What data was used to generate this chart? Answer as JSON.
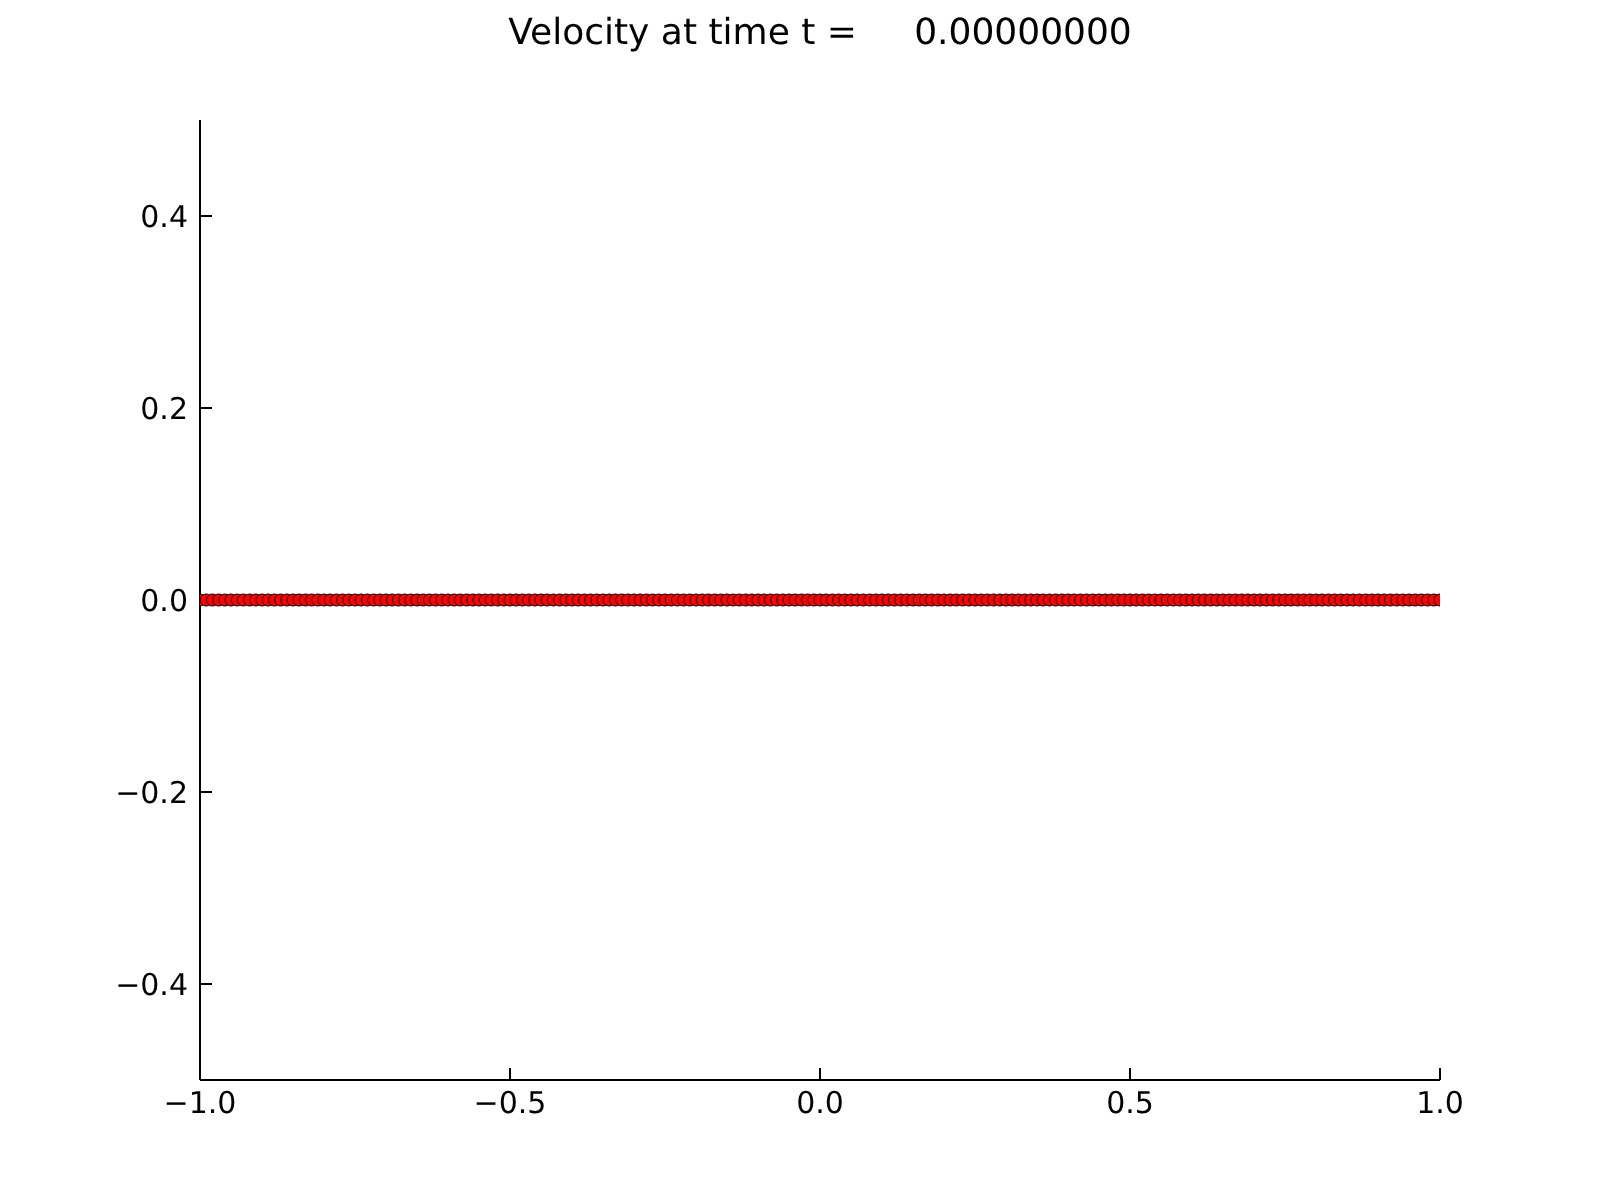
{
  "chart_data": {
    "type": "scatter",
    "title": "Velocity at time t =     0.00000000",
    "marker": "circle",
    "grid": false,
    "legend": false,
    "xlim": [
      -1,
      1
    ],
    "xticks": [
      {
        "value": -1,
        "label": "−1.0"
      },
      {
        "value": -0.5,
        "label": "−0.5"
      },
      {
        "value": 0,
        "label": "0.0"
      },
      {
        "value": 0.5,
        "label": "0.5"
      },
      {
        "value": 1,
        "label": "1.0"
      }
    ],
    "ylim": [
      -0.5,
      0.5
    ],
    "yticks": [
      {
        "value": -0.4,
        "label": "−0.4"
      },
      {
        "value": -0.2,
        "label": "−0.2"
      },
      {
        "value": 0,
        "label": "0.0"
      },
      {
        "value": 0.2,
        "label": "0.2"
      },
      {
        "value": 0.4,
        "label": "0.4"
      }
    ],
    "x": [
      -1,
      -0.99,
      -0.98,
      -0.97,
      -0.96,
      -0.95,
      -0.94,
      -0.93,
      -0.92,
      -0.91,
      -0.9,
      -0.89,
      -0.88,
      -0.87,
      -0.86,
      -0.85,
      -0.84,
      -0.83,
      -0.82,
      -0.81,
      -0.8,
      -0.79,
      -0.78,
      -0.77,
      -0.76,
      -0.75,
      -0.74,
      -0.73,
      -0.72,
      -0.71,
      -0.7,
      -0.69,
      -0.68,
      -0.67,
      -0.66,
      -0.65,
      -0.64,
      -0.63,
      -0.62,
      -0.61,
      -0.6,
      -0.59,
      -0.58,
      -0.57,
      -0.56,
      -0.55,
      -0.54,
      -0.53,
      -0.52,
      -0.51,
      -0.5,
      -0.49,
      -0.48,
      -0.47,
      -0.46,
      -0.45,
      -0.44,
      -0.43,
      -0.42,
      -0.41,
      -0.4,
      -0.39,
      -0.38,
      -0.37,
      -0.36,
      -0.35,
      -0.34,
      -0.33,
      -0.32,
      -0.31,
      -0.3,
      -0.29,
      -0.28,
      -0.27,
      -0.26,
      -0.25,
      -0.24,
      -0.23,
      -0.22,
      -0.21,
      -0.2,
      -0.19,
      -0.18,
      -0.17,
      -0.16,
      -0.15,
      -0.14,
      -0.13,
      -0.12,
      -0.11,
      -0.1,
      -0.09,
      -0.08,
      -0.07,
      -0.06,
      -0.05,
      -0.04,
      -0.03,
      -0.02,
      -0.01,
      0,
      0.01,
      0.02,
      0.03,
      0.04,
      0.05,
      0.06,
      0.07,
      0.08,
      0.09,
      0.1,
      0.11,
      0.12,
      0.13,
      0.14,
      0.15,
      0.16,
      0.17,
      0.18,
      0.19,
      0.2,
      0.21,
      0.22,
      0.23,
      0.24,
      0.25,
      0.26,
      0.27,
      0.28,
      0.29,
      0.3,
      0.31,
      0.32,
      0.33,
      0.34,
      0.35,
      0.36,
      0.37,
      0.38,
      0.39,
      0.4,
      0.41,
      0.42,
      0.43,
      0.44,
      0.45,
      0.46,
      0.47,
      0.48,
      0.49,
      0.5,
      0.51,
      0.52,
      0.53,
      0.54,
      0.55,
      0.56,
      0.57,
      0.58,
      0.59,
      0.6,
      0.61,
      0.62,
      0.63,
      0.64,
      0.65,
      0.66,
      0.67,
      0.68,
      0.69,
      0.7,
      0.71,
      0.72,
      0.73,
      0.74,
      0.75,
      0.76,
      0.77,
      0.78,
      0.79,
      0.8,
      0.81,
      0.82,
      0.83,
      0.84,
      0.85,
      0.86,
      0.87,
      0.88,
      0.89,
      0.9,
      0.91,
      0.92,
      0.93,
      0.94,
      0.95,
      0.96,
      0.97,
      0.98,
      0.99,
      1
    ],
    "series": [
      {
        "color": "#ff0000",
        "values": [
          0,
          0,
          0,
          0,
          0,
          0,
          0,
          0,
          0,
          0,
          0,
          0,
          0,
          0,
          0,
          0,
          0,
          0,
          0,
          0,
          0,
          0,
          0,
          0,
          0,
          0,
          0,
          0,
          0,
          0,
          0,
          0,
          0,
          0,
          0,
          0,
          0,
          0,
          0,
          0,
          0,
          0,
          0,
          0,
          0,
          0,
          0,
          0,
          0,
          0,
          0,
          0,
          0,
          0,
          0,
          0,
          0,
          0,
          0,
          0,
          0,
          0,
          0,
          0,
          0,
          0,
          0,
          0,
          0,
          0,
          0,
          0,
          0,
          0,
          0,
          0,
          0,
          0,
          0,
          0,
          0,
          0,
          0,
          0,
          0,
          0,
          0,
          0,
          0,
          0,
          0,
          0,
          0,
          0,
          0,
          0,
          0,
          0,
          0,
          0,
          0,
          0,
          0,
          0,
          0,
          0,
          0,
          0,
          0,
          0,
          0,
          0,
          0,
          0,
          0,
          0,
          0,
          0,
          0,
          0,
          0,
          0,
          0,
          0,
          0,
          0,
          0,
          0,
          0,
          0,
          0,
          0,
          0,
          0,
          0,
          0,
          0,
          0,
          0,
          0,
          0,
          0,
          0,
          0,
          0,
          0,
          0,
          0,
          0,
          0,
          0,
          0,
          0,
          0,
          0,
          0,
          0,
          0,
          0,
          0,
          0,
          0,
          0,
          0,
          0,
          0,
          0,
          0,
          0,
          0,
          0,
          0,
          0,
          0,
          0,
          0,
          0,
          0,
          0,
          0,
          0,
          0,
          0,
          0,
          0,
          0,
          0,
          0,
          0,
          0,
          0,
          0,
          0,
          0,
          0,
          0,
          0,
          0,
          0,
          0,
          0
        ]
      }
    ]
  }
}
